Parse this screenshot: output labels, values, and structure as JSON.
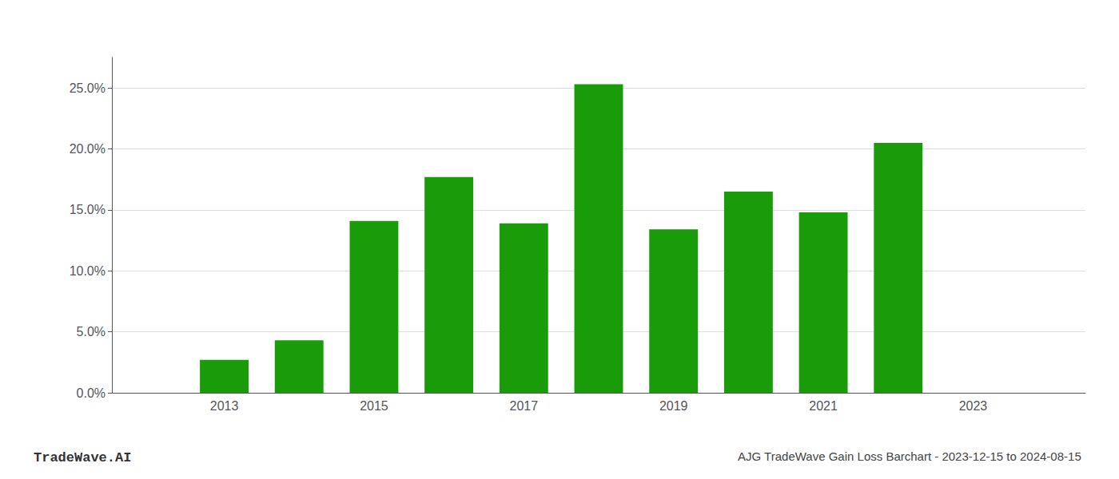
{
  "chart_data": {
    "type": "bar",
    "title": "AJG TradeWave Gain Loss Barchart - 2023-12-15 to 2024-08-15",
    "annotations": [
      "TradeWave.AI"
    ],
    "x": [
      2013,
      2014,
      2015,
      2016,
      2017,
      2018,
      2019,
      2020,
      2021,
      2022
    ],
    "values": [
      0.027,
      0.043,
      0.141,
      0.177,
      0.139,
      0.253,
      0.134,
      0.165,
      0.148,
      0.205
    ],
    "color": "#1a9c0a",
    "xlim": [
      2011.5,
      2024.5
    ],
    "xticks": [
      2013,
      2015,
      2017,
      2019,
      2021,
      2023
    ],
    "ylim": [
      0,
      0.275
    ],
    "yticks": [
      {
        "value": 0.0,
        "label": "0.0%"
      },
      {
        "value": 0.05,
        "label": "5.0%"
      },
      {
        "value": 0.1,
        "label": "10.0%"
      },
      {
        "value": 0.15,
        "label": "15.0%"
      },
      {
        "value": 0.2,
        "label": "20.0%"
      },
      {
        "value": 0.25,
        "label": "25.0%"
      }
    ],
    "grid": true
  }
}
